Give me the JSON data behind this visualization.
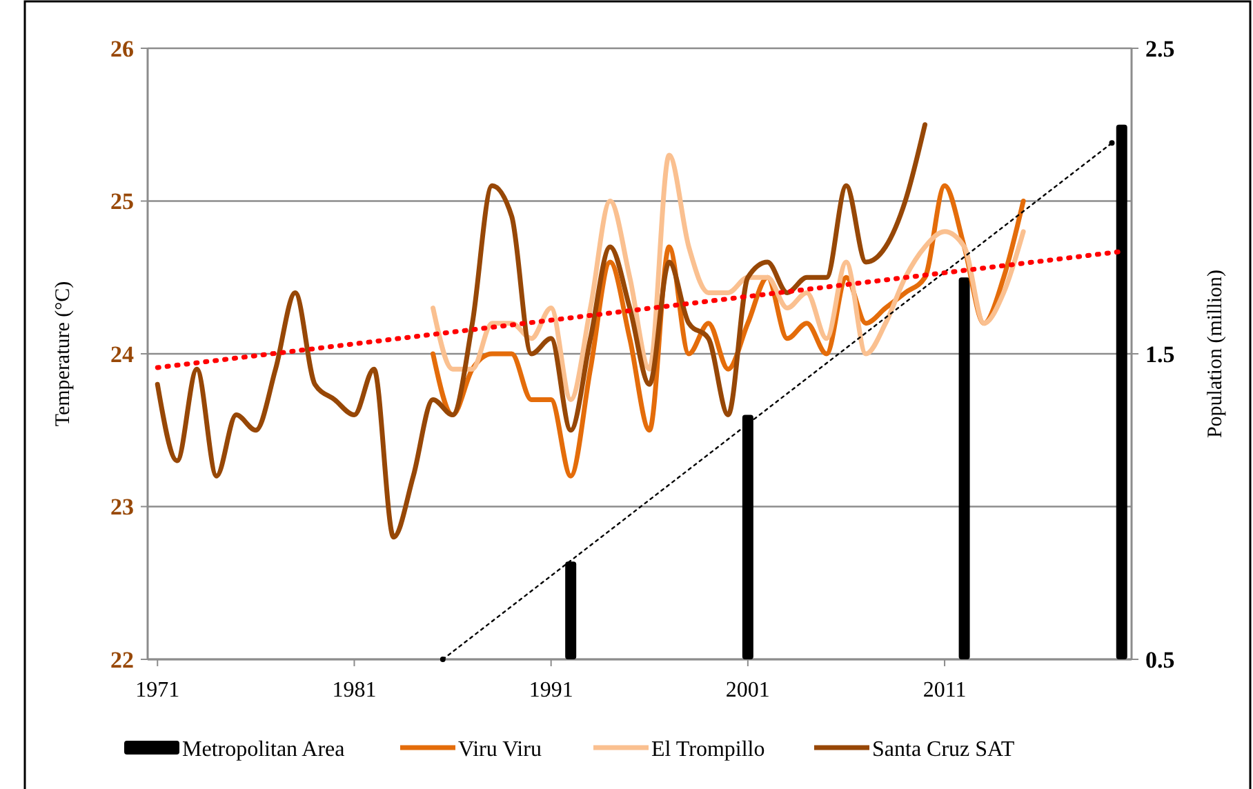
{
  "chart_data": {
    "type": "line",
    "ylabel": "Temperature (°C)",
    "y2label": "Population (million)",
    "xlim": [
      1970.5,
      2020.5
    ],
    "xticks": [
      1971,
      1981,
      1991,
      2001,
      2011
    ],
    "ylim": [
      22,
      26
    ],
    "yticks": [
      22,
      23,
      24,
      25,
      26
    ],
    "y2lim": [
      0.5,
      2.5
    ],
    "y2ticks": [
      0.5,
      1.5,
      2.5
    ],
    "grid": "y",
    "legend": "bottom",
    "series": [
      {
        "name": "Metropolitan Area",
        "type": "bar",
        "axis": "y2",
        "color": "#000000",
        "x": [
          1992,
          2001,
          2012,
          2020
        ],
        "values": [
          0.82,
          1.3,
          1.75,
          2.25
        ]
      },
      {
        "name": "Viru Viru",
        "color": "#e46c0a",
        "x": [
          1985,
          1986,
          1987,
          1988,
          1989,
          1990,
          1991,
          1992,
          1993,
          1994,
          1995,
          1996,
          1997,
          1998,
          1999,
          2000,
          2001,
          2002,
          2003,
          2004,
          2005,
          2006,
          2007,
          2008,
          2009,
          2010,
          2011,
          2012,
          2013,
          2014,
          2015
        ],
        "values": [
          24.0,
          23.6,
          23.9,
          24.0,
          24.0,
          23.7,
          23.7,
          23.2,
          23.9,
          24.6,
          24.1,
          23.5,
          24.7,
          24.0,
          24.2,
          23.9,
          24.2,
          24.5,
          24.1,
          24.2,
          24.0,
          24.5,
          24.2,
          24.3,
          24.4,
          24.5,
          25.1,
          24.7,
          24.2,
          24.5,
          25.0
        ]
      },
      {
        "name": "El Trompillo",
        "color": "#fac090",
        "x": [
          1985,
          1986,
          1987,
          1988,
          1989,
          1990,
          1991,
          1992,
          1993,
          1994,
          1995,
          1996,
          1997,
          1998,
          1999,
          2000,
          2001,
          2002,
          2003,
          2004,
          2005,
          2006,
          2007,
          2008,
          2009,
          2010,
          2011,
          2012,
          2013,
          2014,
          2015
        ],
        "values": [
          24.3,
          23.9,
          23.9,
          24.2,
          24.2,
          24.1,
          24.3,
          23.7,
          24.3,
          25.0,
          24.5,
          23.9,
          25.3,
          24.7,
          24.4,
          24.4,
          24.5,
          24.5,
          24.3,
          24.4,
          24.1,
          24.6,
          24.0,
          24.2,
          24.5,
          24.7,
          24.8,
          24.7,
          24.2,
          24.4,
          24.8
        ]
      },
      {
        "name": "Santa Cruz SAT",
        "color": "#974706",
        "x": [
          1971,
          1972,
          1973,
          1974,
          1975,
          1976,
          1977,
          1978,
          1979,
          1980,
          1981,
          1982,
          1983,
          1984,
          1985,
          1986,
          1987,
          1988,
          1989,
          1990,
          1991,
          1992,
          1993,
          1994,
          1995,
          1996,
          1997,
          1998,
          1999,
          2000,
          2001,
          2002,
          2003,
          2004,
          2005,
          2006,
          2007,
          2008,
          2009,
          2010
        ],
        "values": [
          23.8,
          23.3,
          23.9,
          23.2,
          23.6,
          23.5,
          23.9,
          24.4,
          23.8,
          23.7,
          23.6,
          23.9,
          22.8,
          23.2,
          23.7,
          23.6,
          24.2,
          25.1,
          24.9,
          24.0,
          24.1,
          23.5,
          24.1,
          24.7,
          24.3,
          23.8,
          24.6,
          24.2,
          24.1,
          23.6,
          24.5,
          24.6,
          24.4,
          24.5,
          24.5,
          25.1,
          24.6,
          24.7,
          25.0,
          25.5
        ]
      },
      {
        "axis": "y2",
        "color": "#000000",
        "line_style": "dotted",
        "marker": "circle",
        "x": [
          1985.5,
          2019.5
        ],
        "values": [
          0.5,
          2.19
        ]
      },
      {
        "color": "#ff0000",
        "line_style": "dotted",
        "x": [
          1971,
          2020
        ],
        "values": [
          23.91,
          24.67
        ]
      }
    ]
  }
}
